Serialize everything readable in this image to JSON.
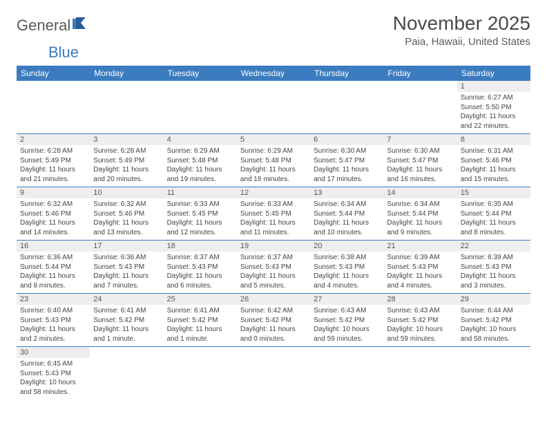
{
  "logo": {
    "text1": "General",
    "text2": "Blue"
  },
  "title": "November 2025",
  "location": "Paia, Hawaii, United States",
  "header_color": "#3b7bbf",
  "row_border_color": "#3b7bbf",
  "daynum_bg": "#eeeeee",
  "days_of_week": [
    "Sunday",
    "Monday",
    "Tuesday",
    "Wednesday",
    "Thursday",
    "Friday",
    "Saturday"
  ],
  "weeks": [
    [
      null,
      null,
      null,
      null,
      null,
      null,
      {
        "n": "1",
        "sr": "Sunrise: 6:27 AM",
        "ss": "Sunset: 5:50 PM",
        "dl1": "Daylight: 11 hours",
        "dl2": "and 22 minutes."
      }
    ],
    [
      {
        "n": "2",
        "sr": "Sunrise: 6:28 AM",
        "ss": "Sunset: 5:49 PM",
        "dl1": "Daylight: 11 hours",
        "dl2": "and 21 minutes."
      },
      {
        "n": "3",
        "sr": "Sunrise: 6:28 AM",
        "ss": "Sunset: 5:49 PM",
        "dl1": "Daylight: 11 hours",
        "dl2": "and 20 minutes."
      },
      {
        "n": "4",
        "sr": "Sunrise: 6:29 AM",
        "ss": "Sunset: 5:48 PM",
        "dl1": "Daylight: 11 hours",
        "dl2": "and 19 minutes."
      },
      {
        "n": "5",
        "sr": "Sunrise: 6:29 AM",
        "ss": "Sunset: 5:48 PM",
        "dl1": "Daylight: 11 hours",
        "dl2": "and 18 minutes."
      },
      {
        "n": "6",
        "sr": "Sunrise: 6:30 AM",
        "ss": "Sunset: 5:47 PM",
        "dl1": "Daylight: 11 hours",
        "dl2": "and 17 minutes."
      },
      {
        "n": "7",
        "sr": "Sunrise: 6:30 AM",
        "ss": "Sunset: 5:47 PM",
        "dl1": "Daylight: 11 hours",
        "dl2": "and 16 minutes."
      },
      {
        "n": "8",
        "sr": "Sunrise: 6:31 AM",
        "ss": "Sunset: 5:46 PM",
        "dl1": "Daylight: 11 hours",
        "dl2": "and 15 minutes."
      }
    ],
    [
      {
        "n": "9",
        "sr": "Sunrise: 6:32 AM",
        "ss": "Sunset: 5:46 PM",
        "dl1": "Daylight: 11 hours",
        "dl2": "and 14 minutes."
      },
      {
        "n": "10",
        "sr": "Sunrise: 6:32 AM",
        "ss": "Sunset: 5:46 PM",
        "dl1": "Daylight: 11 hours",
        "dl2": "and 13 minutes."
      },
      {
        "n": "11",
        "sr": "Sunrise: 6:33 AM",
        "ss": "Sunset: 5:45 PM",
        "dl1": "Daylight: 11 hours",
        "dl2": "and 12 minutes."
      },
      {
        "n": "12",
        "sr": "Sunrise: 6:33 AM",
        "ss": "Sunset: 5:45 PM",
        "dl1": "Daylight: 11 hours",
        "dl2": "and 11 minutes."
      },
      {
        "n": "13",
        "sr": "Sunrise: 6:34 AM",
        "ss": "Sunset: 5:44 PM",
        "dl1": "Daylight: 11 hours",
        "dl2": "and 10 minutes."
      },
      {
        "n": "14",
        "sr": "Sunrise: 6:34 AM",
        "ss": "Sunset: 5:44 PM",
        "dl1": "Daylight: 11 hours",
        "dl2": "and 9 minutes."
      },
      {
        "n": "15",
        "sr": "Sunrise: 6:35 AM",
        "ss": "Sunset: 5:44 PM",
        "dl1": "Daylight: 11 hours",
        "dl2": "and 8 minutes."
      }
    ],
    [
      {
        "n": "16",
        "sr": "Sunrise: 6:36 AM",
        "ss": "Sunset: 5:44 PM",
        "dl1": "Daylight: 11 hours",
        "dl2": "and 8 minutes."
      },
      {
        "n": "17",
        "sr": "Sunrise: 6:36 AM",
        "ss": "Sunset: 5:43 PM",
        "dl1": "Daylight: 11 hours",
        "dl2": "and 7 minutes."
      },
      {
        "n": "18",
        "sr": "Sunrise: 6:37 AM",
        "ss": "Sunset: 5:43 PM",
        "dl1": "Daylight: 11 hours",
        "dl2": "and 6 minutes."
      },
      {
        "n": "19",
        "sr": "Sunrise: 6:37 AM",
        "ss": "Sunset: 5:43 PM",
        "dl1": "Daylight: 11 hours",
        "dl2": "and 5 minutes."
      },
      {
        "n": "20",
        "sr": "Sunrise: 6:38 AM",
        "ss": "Sunset: 5:43 PM",
        "dl1": "Daylight: 11 hours",
        "dl2": "and 4 minutes."
      },
      {
        "n": "21",
        "sr": "Sunrise: 6:39 AM",
        "ss": "Sunset: 5:43 PM",
        "dl1": "Daylight: 11 hours",
        "dl2": "and 4 minutes."
      },
      {
        "n": "22",
        "sr": "Sunrise: 6:39 AM",
        "ss": "Sunset: 5:43 PM",
        "dl1": "Daylight: 11 hours",
        "dl2": "and 3 minutes."
      }
    ],
    [
      {
        "n": "23",
        "sr": "Sunrise: 6:40 AM",
        "ss": "Sunset: 5:43 PM",
        "dl1": "Daylight: 11 hours",
        "dl2": "and 2 minutes."
      },
      {
        "n": "24",
        "sr": "Sunrise: 6:41 AM",
        "ss": "Sunset: 5:42 PM",
        "dl1": "Daylight: 11 hours",
        "dl2": "and 1 minute."
      },
      {
        "n": "25",
        "sr": "Sunrise: 6:41 AM",
        "ss": "Sunset: 5:42 PM",
        "dl1": "Daylight: 11 hours",
        "dl2": "and 1 minute."
      },
      {
        "n": "26",
        "sr": "Sunrise: 6:42 AM",
        "ss": "Sunset: 5:42 PM",
        "dl1": "Daylight: 11 hours",
        "dl2": "and 0 minutes."
      },
      {
        "n": "27",
        "sr": "Sunrise: 6:43 AM",
        "ss": "Sunset: 5:42 PM",
        "dl1": "Daylight: 10 hours",
        "dl2": "and 59 minutes."
      },
      {
        "n": "28",
        "sr": "Sunrise: 6:43 AM",
        "ss": "Sunset: 5:42 PM",
        "dl1": "Daylight: 10 hours",
        "dl2": "and 59 minutes."
      },
      {
        "n": "29",
        "sr": "Sunrise: 6:44 AM",
        "ss": "Sunset: 5:42 PM",
        "dl1": "Daylight: 10 hours",
        "dl2": "and 58 minutes."
      }
    ],
    [
      {
        "n": "30",
        "sr": "Sunrise: 6:45 AM",
        "ss": "Sunset: 5:43 PM",
        "dl1": "Daylight: 10 hours",
        "dl2": "and 58 minutes."
      },
      null,
      null,
      null,
      null,
      null,
      null
    ]
  ]
}
